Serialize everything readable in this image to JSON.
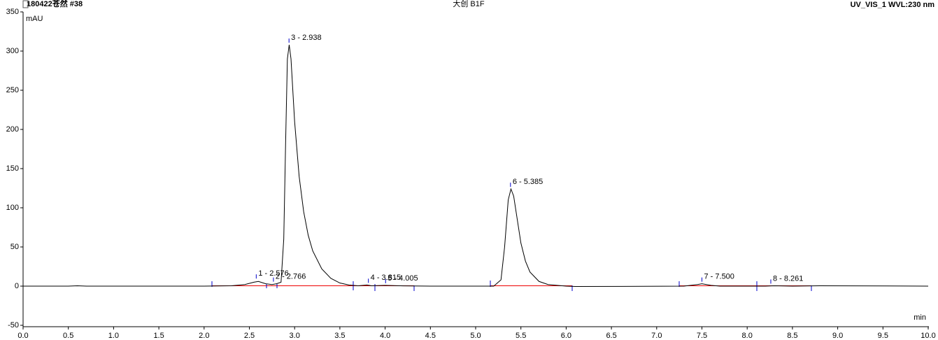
{
  "chart_data": {
    "type": "line",
    "title": "大创 B1F",
    "subtitle": "180422苍然 #38",
    "detector": "UV_VIS_1 WVL:230 nm",
    "y_label": "mAU",
    "x_label": "min",
    "x": [
      0,
      0.5,
      0.6,
      0.7,
      2.0,
      2.3,
      2.45,
      2.55,
      2.6,
      2.68,
      2.75,
      2.8,
      2.85,
      2.88,
      2.9,
      2.92,
      2.94,
      2.96,
      3.0,
      3.05,
      3.1,
      3.15,
      3.2,
      3.3,
      3.4,
      3.5,
      3.6,
      3.7,
      3.8,
      3.85,
      4.0,
      4.2,
      4.5,
      5.0,
      5.2,
      5.28,
      5.32,
      5.36,
      5.39,
      5.42,
      5.46,
      5.5,
      5.55,
      5.6,
      5.7,
      5.8,
      6.0,
      6.1,
      7.3,
      7.45,
      7.5,
      7.6,
      7.7,
      8.2,
      8.3,
      8.5,
      8.8,
      10.0
    ],
    "series": [
      {
        "name": "UV_VIS_1",
        "color": "#000000",
        "values": [
          0,
          0,
          0.5,
          0,
          0,
          0.5,
          2,
          5,
          6,
          3,
          2,
          3,
          5,
          60,
          180,
          290,
          308,
          290,
          210,
          140,
          95,
          65,
          45,
          22,
          10,
          4,
          1.5,
          0.5,
          1.5,
          0.5,
          1,
          0.3,
          0,
          0,
          0,
          8,
          50,
          110,
          124,
          115,
          85,
          55,
          32,
          18,
          6,
          2,
          0,
          -0.5,
          0,
          2,
          3,
          1,
          0,
          0,
          0.5,
          0,
          0.5,
          0
        ]
      }
    ],
    "annotations": [
      {
        "text": "1 - 2.576",
        "x": 2.576,
        "y": 7
      },
      {
        "text": "2 - 2.766",
        "x": 2.766,
        "y": 3
      },
      {
        "text": "3 - 2.938",
        "x": 2.938,
        "y": 308
      },
      {
        "text": "4 - 3.815",
        "x": 3.815,
        "y": 1.5
      },
      {
        "text": "5 - 4.005",
        "x": 4.005,
        "y": 1
      },
      {
        "text": "6 - 5.385",
        "x": 5.385,
        "y": 124
      },
      {
        "text": "7 - 7.500",
        "x": 7.5,
        "y": 3
      },
      {
        "text": "8 - 8.261",
        "x": 8.261,
        "y": 0.5
      }
    ],
    "xlim": [
      0,
      10
    ],
    "xticks": [
      {
        "value": 0,
        "label": "0.0"
      },
      {
        "value": 0.5,
        "label": "0.5"
      },
      {
        "value": 1,
        "label": "1.0"
      },
      {
        "value": 1.5,
        "label": "1.5"
      },
      {
        "value": 2,
        "label": "2.0"
      },
      {
        "value": 2.5,
        "label": "2.5"
      },
      {
        "value": 3,
        "label": "3.0"
      },
      {
        "value": 3.5,
        "label": "3.5"
      },
      {
        "value": 4,
        "label": "4.0"
      },
      {
        "value": 4.5,
        "label": "4.5"
      },
      {
        "value": 5,
        "label": "5.0"
      },
      {
        "value": 5.5,
        "label": "5.5"
      },
      {
        "value": 6,
        "label": "6.0"
      },
      {
        "value": 6.5,
        "label": "6.5"
      },
      {
        "value": 7,
        "label": "7.0"
      },
      {
        "value": 7.5,
        "label": "7.5"
      },
      {
        "value": 8,
        "label": "8.0"
      },
      {
        "value": 8.5,
        "label": "8.5"
      },
      {
        "value": 9,
        "label": "9.0"
      },
      {
        "value": 9.5,
        "label": "9.5"
      },
      {
        "value": 10,
        "label": "10.0"
      }
    ],
    "ylim": [
      -50,
      350
    ],
    "yticks": [
      -50,
      0,
      50,
      100,
      150,
      200,
      250,
      300,
      350
    ]
  }
}
